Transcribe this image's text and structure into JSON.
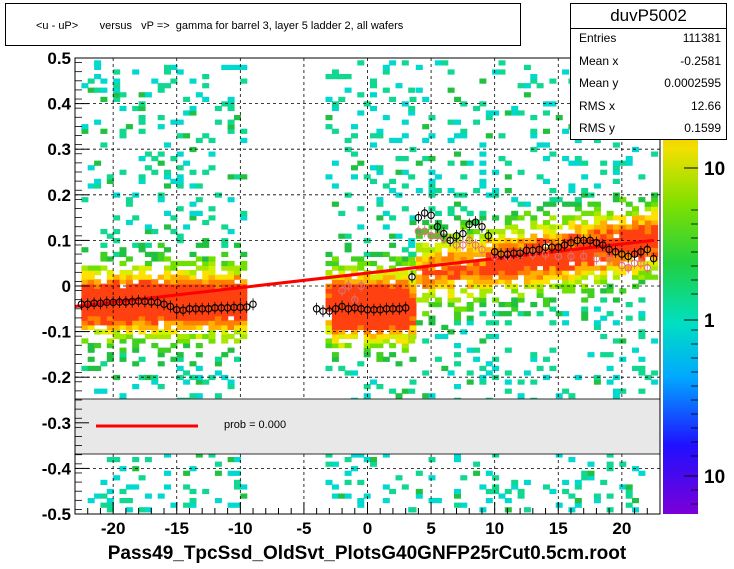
{
  "title": "<u - uP>       versus   vP =>  gamma for barrel 3, layer 5 ladder 2, all wafers",
  "stats": {
    "name": "duvP5002",
    "rows": [
      {
        "label": "Entries",
        "value": "111381"
      },
      {
        "label": "Mean x",
        "value": "-0.2581"
      },
      {
        "label": "Mean y",
        "value": "0.0002595"
      },
      {
        "label": "RMS x",
        "value": "12.66"
      },
      {
        "label": "RMS y",
        "value": "0.1599"
      }
    ]
  },
  "footer": "Pass49_TpcSsd_OldSvt_PlotsG40GNFP25rCut0.5cm.root",
  "legend": {
    "fit_label": "prob = 0.000",
    "fit_color": "#ff0000"
  },
  "colorbar": {
    "tick_labels": [
      "10",
      "1",
      "10"
    ]
  },
  "colors": {
    "fit": "#ff0000",
    "profile_black": "#000000",
    "profile_pink": "#e07070",
    "band": "#e8e8e8"
  },
  "chart_data": {
    "type": "heatmap",
    "title": "<u - uP>       versus   vP =>  gamma for barrel 3, layer 5 ladder 2, all wafers",
    "xlim": [
      -23,
      23
    ],
    "ylim": [
      -0.5,
      0.5
    ],
    "x_ticks": [
      -20,
      -15,
      -10,
      -5,
      0,
      5,
      10,
      15,
      20
    ],
    "y_ticks": [
      -0.5,
      -0.4,
      -0.3,
      -0.2,
      -0.1,
      0,
      0.1,
      0.2,
      0.3,
      0.4,
      0.5
    ],
    "y_tick_labels": [
      "-0.5",
      "-0.4",
      "-0.3",
      "-0.2",
      "-0.1",
      "0",
      "0.1",
      "0.2",
      "0.3",
      "0.4",
      "0.5"
    ],
    "x_tick_labels": [
      "-20",
      "-15",
      "-10",
      "-5",
      "0",
      "5",
      "10",
      "15",
      "20"
    ],
    "grid": true,
    "colorbar_scale": "log",
    "fit_line": {
      "x": [
        -23,
        22.5
      ],
      "y": [
        -0.045,
        0.1
      ]
    },
    "profile_black": {
      "x": [
        -22.5,
        -22,
        -21.5,
        -21,
        -20.5,
        -20,
        -19.5,
        -19,
        -18.5,
        -18,
        -17.5,
        -17,
        -16.5,
        -16,
        -15.5,
        -15,
        -14.5,
        -14,
        -13.5,
        -13,
        -12.5,
        -12,
        -11.5,
        -11,
        -10.5,
        -10,
        -9.5,
        -9,
        -4,
        -3.5,
        -3,
        -2.5,
        -2,
        -1.5,
        -1,
        -0.5,
        0,
        0.5,
        1,
        1.5,
        2,
        2.5,
        3,
        3.5,
        4,
        4.5,
        5,
        5.5,
        6,
        6.5,
        7,
        7.5,
        8,
        8.5,
        9,
        9.5,
        10,
        10.5,
        11,
        11.5,
        12,
        12.5,
        13,
        13.5,
        14,
        14.5,
        15,
        15.5,
        16,
        16.5,
        17,
        17.5,
        18,
        18.5,
        19,
        19.5,
        20,
        20.5,
        21,
        21.5,
        22,
        22.5
      ],
      "y": [
        -0.04,
        -0.04,
        -0.038,
        -0.038,
        -0.036,
        -0.036,
        -0.035,
        -0.035,
        -0.034,
        -0.033,
        -0.034,
        -0.035,
        -0.036,
        -0.04,
        -0.045,
        -0.052,
        -0.053,
        -0.05,
        -0.05,
        -0.05,
        -0.05,
        -0.048,
        -0.048,
        -0.048,
        -0.047,
        -0.047,
        -0.046,
        -0.04,
        -0.05,
        -0.055,
        -0.055,
        -0.05,
        -0.045,
        -0.05,
        -0.048,
        -0.05,
        -0.052,
        -0.052,
        -0.052,
        -0.05,
        -0.05,
        -0.05,
        -0.048,
        0.02,
        0.15,
        0.16,
        0.155,
        0.13,
        0.115,
        0.1,
        0.11,
        0.115,
        0.135,
        0.14,
        0.13,
        0.11,
        0.075,
        0.07,
        0.07,
        0.072,
        0.072,
        0.078,
        0.078,
        0.08,
        0.085,
        0.085,
        0.085,
        0.09,
        0.095,
        0.1,
        0.1,
        0.1,
        0.095,
        0.09,
        0.08,
        0.075,
        0.07,
        0.065,
        0.07,
        0.075,
        0.08,
        0.06
      ]
    },
    "profile_pink": {
      "x": [
        -2,
        -1.5,
        -1,
        -0.5,
        4,
        4.5,
        5,
        5.5,
        6,
        6.5,
        7,
        7.5,
        8,
        8.5,
        9,
        10,
        11,
        12,
        13,
        14,
        15,
        16,
        17,
        18,
        19,
        20,
        20.5,
        21,
        21.5,
        22
      ],
      "y": [
        -0.01,
        0.0,
        -0.03,
        0.0,
        0.12,
        0.12,
        0.11,
        0.11,
        0.105,
        0.1,
        0.09,
        0.09,
        0.1,
        0.09,
        0.08,
        0.065,
        0.065,
        0.07,
        0.07,
        0.07,
        0.065,
        0.065,
        0.065,
        0.06,
        0.06,
        0.045,
        0.04,
        0.05,
        0.05,
        0.04
      ]
    }
  }
}
